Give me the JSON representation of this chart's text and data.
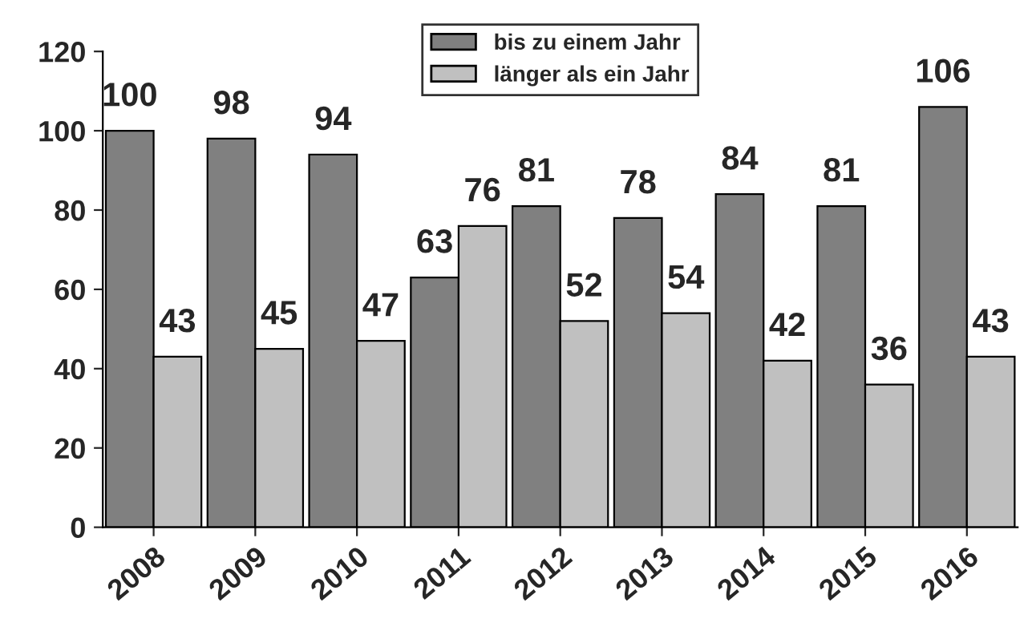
{
  "chart_data": {
    "type": "bar",
    "categories": [
      "2008",
      "2009",
      "2010",
      "2011",
      "2012",
      "2013",
      "2014",
      "2015",
      "2016"
    ],
    "series": [
      {
        "name": "bis zu einem Jahr",
        "color": "#808080",
        "values": [
          100,
          98,
          94,
          63,
          81,
          78,
          84,
          81,
          106
        ]
      },
      {
        "name": "länger als ein Jahr",
        "color": "#c0c0c0",
        "values": [
          43,
          45,
          47,
          76,
          52,
          54,
          42,
          36,
          43
        ]
      }
    ],
    "ylim": [
      0,
      120
    ],
    "yticks": [
      0,
      20,
      40,
      60,
      80,
      100,
      120
    ],
    "data_labels": true,
    "legend": "top",
    "grid": false
  }
}
